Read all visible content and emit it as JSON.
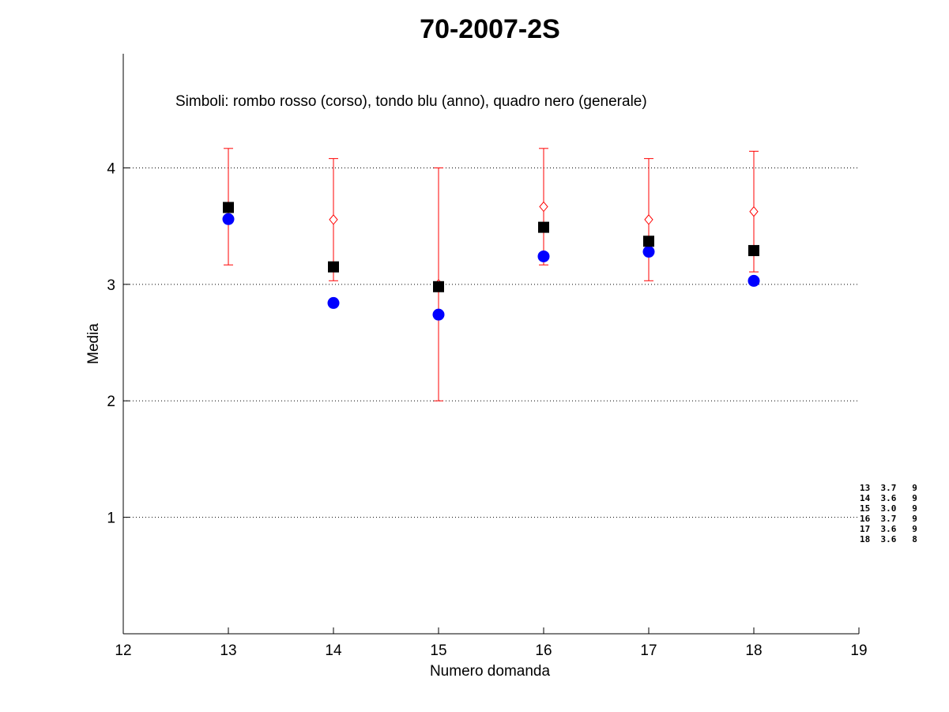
{
  "chart_data": {
    "type": "scatter",
    "title": "70-2007-2S",
    "xlabel": "Numero domanda",
    "ylabel": "Media",
    "xlim": [
      12,
      19
    ],
    "ylim": [
      0,
      4.98
    ],
    "xticks": [
      "12",
      "13",
      "14",
      "15",
      "16",
      "17",
      "18",
      "19"
    ],
    "yticks": [
      "1",
      "2",
      "3",
      "4"
    ],
    "grid": "horizontal-dotted",
    "annotation": "Simboli: rombo rosso (corso), tondo blu (anno), quadro nero (generale)",
    "x": [
      13,
      14,
      15,
      16,
      17,
      18
    ],
    "series": [
      {
        "name": "corso",
        "marker": "diamond-open",
        "color": "#ff0000",
        "values": [
          3.667,
          3.556,
          3.0,
          3.667,
          3.556,
          3.625
        ],
        "err_low": [
          3.167,
          3.031,
          2.0,
          3.167,
          3.031,
          3.107
        ],
        "err_high": [
          4.167,
          4.08,
          4.0,
          4.167,
          4.08,
          4.143
        ]
      },
      {
        "name": "anno",
        "marker": "circle-filled",
        "color": "#0000ff",
        "values": [
          3.56,
          2.84,
          2.74,
          3.24,
          3.28,
          3.03
        ]
      },
      {
        "name": "generale",
        "marker": "square-filled",
        "color": "#000000",
        "values": [
          3.66,
          3.15,
          2.98,
          3.49,
          3.37,
          3.29
        ]
      }
    ],
    "side_table": [
      "13  3.7   9",
      "14  3.6   9",
      "15  3.0   9",
      "16  3.7   9",
      "17  3.6   9",
      "18  3.6   8"
    ]
  }
}
